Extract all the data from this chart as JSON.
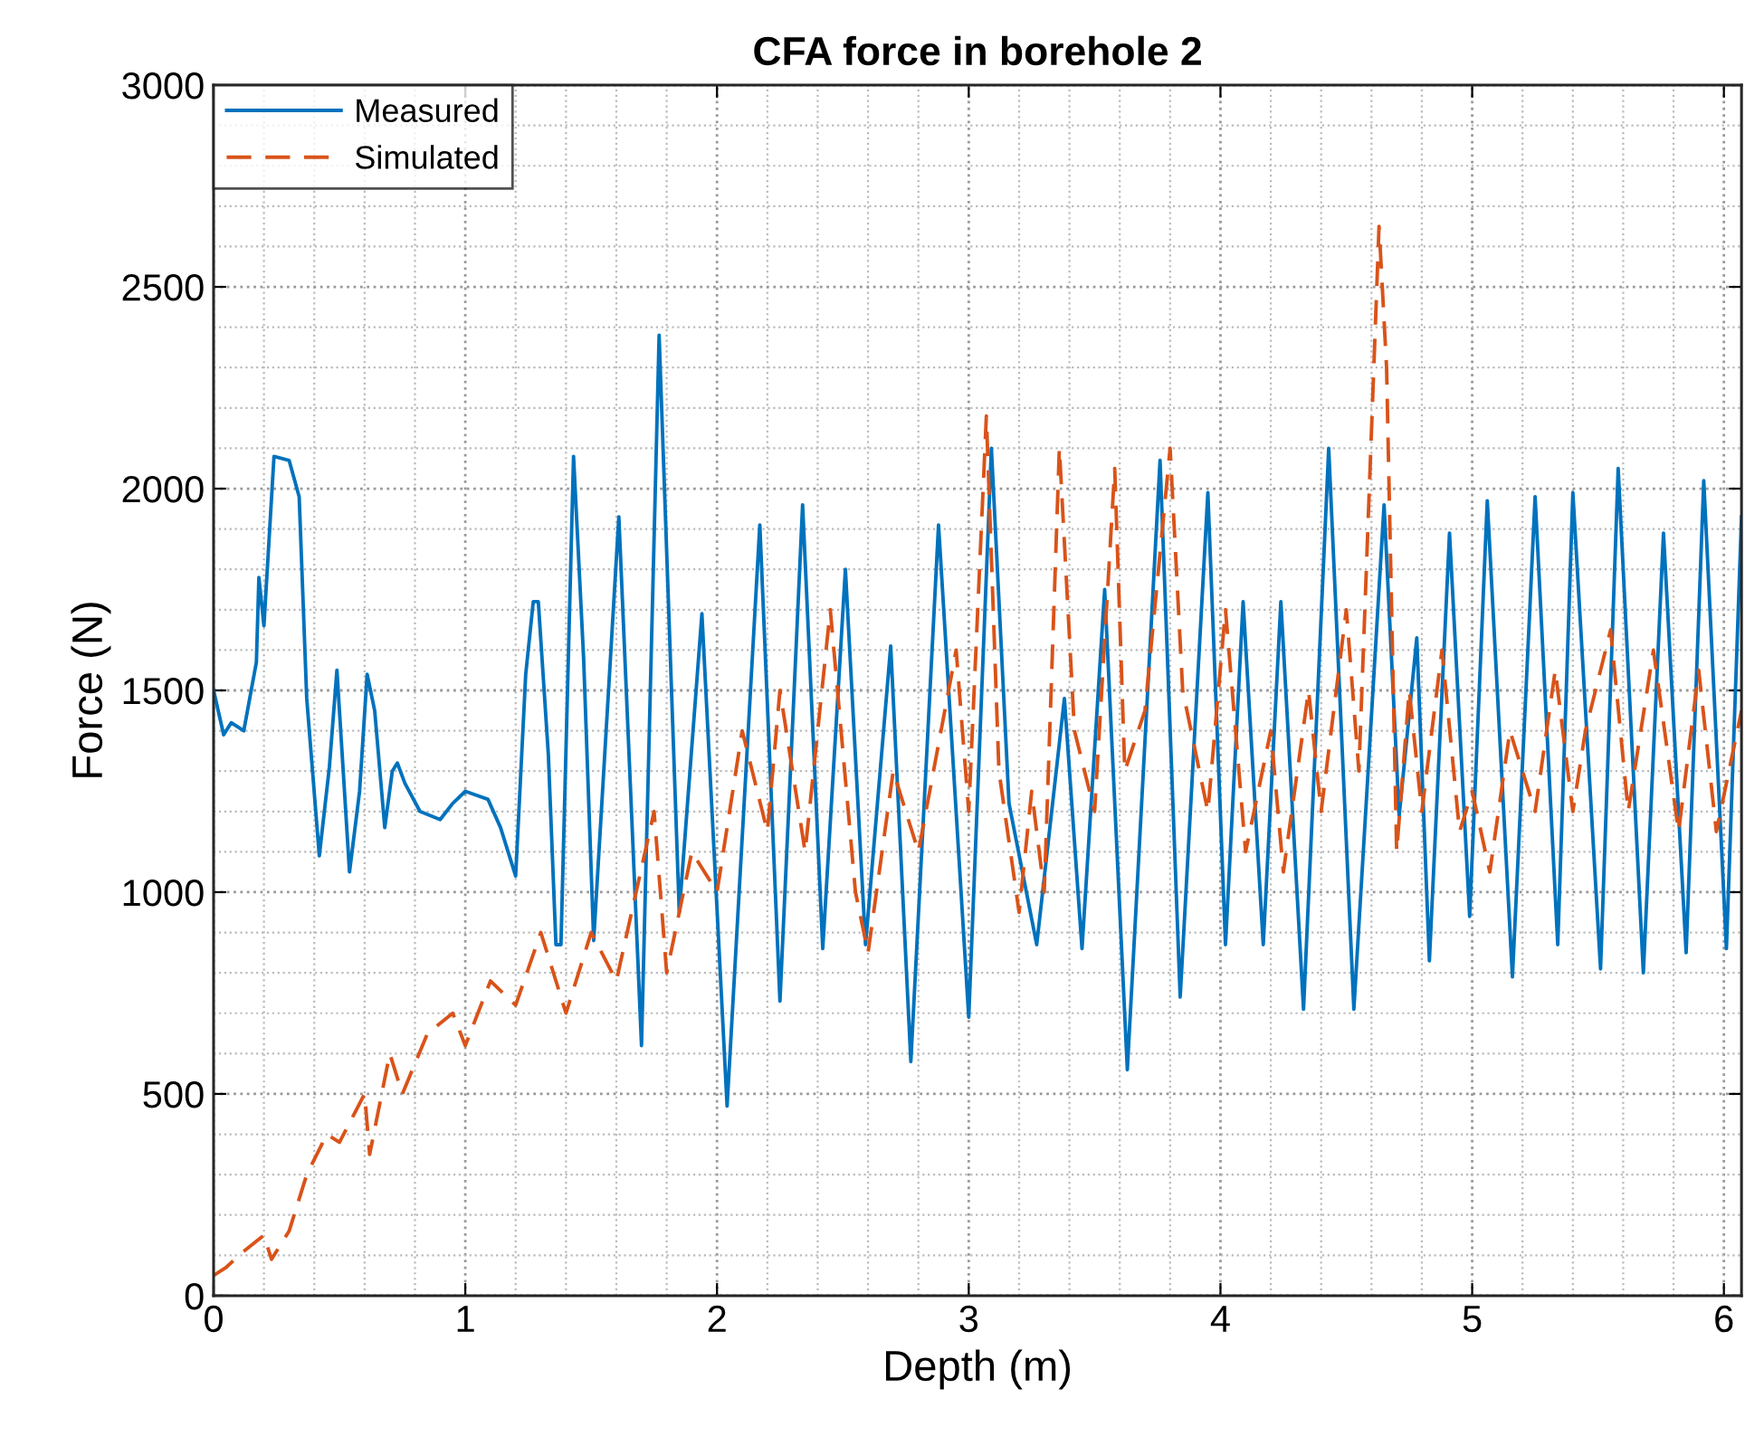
{
  "chart_data": {
    "type": "line",
    "title": "CFA force in borehole 2",
    "xlabel": "Depth (m)",
    "ylabel": "Force (N)",
    "xlim": [
      0,
      6.07
    ],
    "xticks": [
      0,
      1,
      2,
      3,
      4,
      5,
      6
    ],
    "ylim": [
      0,
      3000
    ],
    "yticks": [
      0,
      500,
      1000,
      1500,
      2000,
      2500,
      3000
    ],
    "grid": true,
    "legend": "top left",
    "series": [
      {
        "name": "Measured",
        "color": "#0072bd",
        "line_style": "solid",
        "x": [
          0.0,
          0.04,
          0.07,
          0.12,
          0.17,
          0.18,
          0.2,
          0.24,
          0.3,
          0.34,
          0.37,
          0.42,
          0.46,
          0.49,
          0.54,
          0.58,
          0.61,
          0.64,
          0.68,
          0.71,
          0.73,
          0.76,
          0.82,
          0.9,
          0.95,
          1.0,
          1.09,
          1.14,
          1.2,
          1.24,
          1.27,
          1.29,
          1.33,
          1.36,
          1.38,
          1.43,
          1.47,
          1.51,
          1.61,
          1.7,
          1.77,
          1.85,
          1.94,
          2.04,
          2.17,
          2.25,
          2.34,
          2.42,
          2.51,
          2.59,
          2.69,
          2.77,
          2.88,
          3.0,
          3.09,
          3.16,
          3.27,
          3.38,
          3.45,
          3.54,
          3.63,
          3.76,
          3.84,
          3.95,
          4.02,
          4.09,
          4.17,
          4.24,
          4.33,
          4.43,
          4.53,
          4.65,
          4.71,
          4.78,
          4.83,
          4.91,
          4.99,
          5.06,
          5.16,
          5.25,
          5.34,
          5.4,
          5.51,
          5.58,
          5.68,
          5.76,
          5.85,
          5.92,
          6.01,
          6.07
        ],
        "values": [
          1500,
          1390,
          1420,
          1400,
          1570,
          1780,
          1660,
          2080,
          2070,
          1980,
          1480,
          1090,
          1310,
          1550,
          1050,
          1250,
          1540,
          1450,
          1160,
          1300,
          1320,
          1270,
          1200,
          1180,
          1220,
          1250,
          1230,
          1160,
          1040,
          1540,
          1720,
          1720,
          1340,
          870,
          870,
          2080,
          1580,
          880,
          1930,
          620,
          2380,
          950,
          1690,
          470,
          1910,
          730,
          1960,
          860,
          1800,
          870,
          1610,
          580,
          1910,
          690,
          2100,
          1220,
          870,
          1480,
          860,
          1750,
          560,
          2070,
          740,
          1990,
          870,
          1720,
          870,
          1720,
          710,
          2100,
          710,
          1960,
          1190,
          1630,
          830,
          1890,
          940,
          1970,
          790,
          1980,
          870,
          1990,
          810,
          2050,
          800,
          1890,
          850,
          2020,
          860,
          1930
        ]
      },
      {
        "name": "Simulated",
        "color": "#d95319",
        "line_style": "dashed",
        "x": [
          0.0,
          0.05,
          0.1,
          0.2,
          0.23,
          0.3,
          0.37,
          0.45,
          0.5,
          0.6,
          0.62,
          0.7,
          0.75,
          0.85,
          0.95,
          1.0,
          1.1,
          1.2,
          1.3,
          1.4,
          1.5,
          1.6,
          1.75,
          1.8,
          1.9,
          2.0,
          2.1,
          2.2,
          2.25,
          2.35,
          2.45,
          2.55,
          2.6,
          2.7,
          2.8,
          2.95,
          3.0,
          3.07,
          3.12,
          3.2,
          3.25,
          3.3,
          3.36,
          3.42,
          3.5,
          3.58,
          3.62,
          3.7,
          3.8,
          3.85,
          3.95,
          4.02,
          4.1,
          4.2,
          4.25,
          4.35,
          4.4,
          4.5,
          4.55,
          4.63,
          4.66,
          4.7,
          4.75,
          4.8,
          4.88,
          4.95,
          5.0,
          5.07,
          5.15,
          5.25,
          5.33,
          5.4,
          5.45,
          5.55,
          5.62,
          5.72,
          5.82,
          5.9,
          5.97,
          6.07
        ],
        "values": [
          50,
          70,
          100,
          150,
          90,
          160,
          300,
          400,
          380,
          500,
          350,
          600,
          500,
          650,
          700,
          620,
          780,
          720,
          900,
          700,
          900,
          780,
          1200,
          800,
          1100,
          1000,
          1400,
          1150,
          1500,
          1100,
          1700,
          1000,
          850,
          1300,
          1100,
          1600,
          1200,
          2180,
          1300,
          950,
          1250,
          1000,
          2100,
          1400,
          1200,
          2050,
          1300,
          1450,
          2100,
          1500,
          1200,
          1700,
          1100,
          1400,
          1050,
          1500,
          1200,
          1700,
          1300,
          2650,
          2300,
          1100,
          1500,
          1200,
          1600,
          1150,
          1250,
          1050,
          1400,
          1200,
          1550,
          1200,
          1400,
          1650,
          1200,
          1600,
          1150,
          1550,
          1150,
          1450
        ]
      }
    ]
  }
}
